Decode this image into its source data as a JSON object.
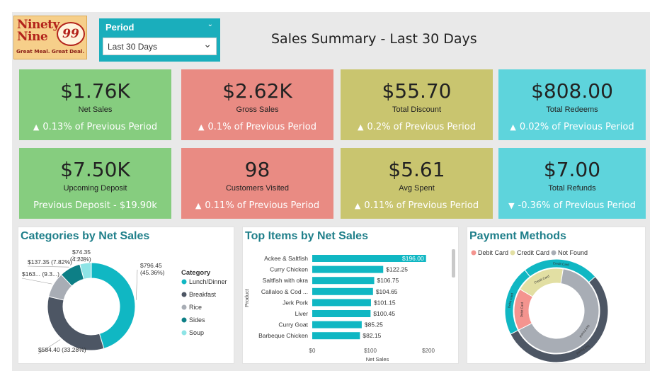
{
  "logo": {
    "line1": "Ninety",
    "line2": "Nine",
    "badge": "99",
    "tagline": "Great Meal. Great Deal."
  },
  "slicer": {
    "header": "Period",
    "selected": "Last 30 Days"
  },
  "page_title": "Sales Summary - Last 30 Days",
  "colors": {
    "green": "#86cd7f",
    "salmon": "#e98b83",
    "olive": "#c9c56f",
    "cyan": "#5ed4dc",
    "teal": "#10b7c3",
    "slate": "#4d5664",
    "gray": "#a8adb5",
    "darkteal": "#0d7f86",
    "lightteal": "#8ee4e6",
    "pink": "#f4948f",
    "cream": "#e2dfa3",
    "title_teal": "#1f7f8a"
  },
  "kpis": [
    {
      "value": "$1.76K",
      "label": "Net Sales",
      "arrow": "▲",
      "change": "0.13% of Previous Period"
    },
    {
      "value": "$2.62K",
      "label": "Gross Sales",
      "arrow": "▲",
      "change": "0.1% of Previous Period"
    },
    {
      "value": "$55.70",
      "label": "Total Discount",
      "arrow": "▲",
      "change": "0.2% of Previous Period"
    },
    {
      "value": "$808.00",
      "label": "Total Redeems",
      "arrow": "▲",
      "change": "0.02% of Previous Period"
    },
    {
      "value": "$7.50K",
      "label": "Upcoming Deposit",
      "arrow": "",
      "change": "Previous Deposit - $19.90k"
    },
    {
      "value": "98",
      "label": "Customers Visited",
      "arrow": "▲",
      "change": "0.11% of Previous Period"
    },
    {
      "value": "$5.61",
      "label": "Avg Spent",
      "arrow": "▲",
      "change": "0.11% of Previous Period"
    },
    {
      "value": "$7.00",
      "label": "Total Refunds",
      "arrow": "▼",
      "change": "-0.36% of Previous Period"
    }
  ],
  "panels": {
    "categories": "Categories by Net Sales",
    "top_items": "Top Items by Net Sales",
    "payments": "Payment Methods"
  },
  "chart_data": [
    {
      "type": "pie",
      "title": "Categories by Net Sales",
      "legend_title": "Category",
      "legend_position": "right",
      "categories": [
        "Lunch/Dinner",
        "Breakfast",
        "Rice",
        "Sides",
        "Soup"
      ],
      "values": [
        796.45,
        584.4,
        163.0,
        137.35,
        74.35
      ],
      "labels": [
        "$796.45 (45.36%)",
        "$584.40 (33.28%)",
        "$163... (9.3...)",
        "$137.35 (7.82%)",
        "$74.35 (4.23%)"
      ],
      "colors": [
        "#10b7c3",
        "#4d5664",
        "#a8adb5",
        "#0d7f86",
        "#8ee4e6"
      ]
    },
    {
      "type": "bar",
      "orientation": "horizontal",
      "title": "Top Items by Net Sales",
      "categories": [
        "Ackee & Saltfish",
        "Curry Chicken",
        "Saltfish with okra",
        "Callaloo & Cod ...",
        "Jerk Pork",
        "Liver",
        "Curry Goat",
        "Barbeque Chicken"
      ],
      "values": [
        196.0,
        122.25,
        106.75,
        104.65,
        101.15,
        100.45,
        85.25,
        82.15
      ],
      "data_labels": [
        "$196.00",
        "$122.25",
        "$106.75",
        "$104.65",
        "$101.15",
        "$100.45",
        "$85.25",
        "$82.15"
      ],
      "xlabel": "Net Sales",
      "ylabel": "Product",
      "xticks": [
        "$0",
        "$100",
        "$200"
      ],
      "xlim": [
        0,
        200
      ]
    },
    {
      "type": "pie",
      "title": "Payment Methods",
      "legend_position": "top",
      "series": [
        {
          "name": "Outer",
          "categories": [
            "Debit Card",
            "Credit Card",
            "Not Found"
          ],
          "values": [
            0.22,
            0.24,
            0.54
          ],
          "labels": [
            "Debit Card",
            "Credit Card",
            "Not Found"
          ]
        },
        {
          "name": "Inner",
          "categories": [
            "Debit Card",
            "Credit Card",
            "Not Found"
          ],
          "values": [
            0.16,
            0.19,
            0.65
          ],
          "labels": [
            "Debit Card",
            "Credit Card",
            "Not Found"
          ]
        }
      ],
      "legend": [
        "Debit Card",
        "Credit Card",
        "Not Found"
      ],
      "outer_colors": [
        "#10b7c3",
        "#10b7c3",
        "#4d5664"
      ],
      "inner_colors": [
        "#f4948f",
        "#e2dfa3",
        "#a8adb5"
      ]
    }
  ]
}
